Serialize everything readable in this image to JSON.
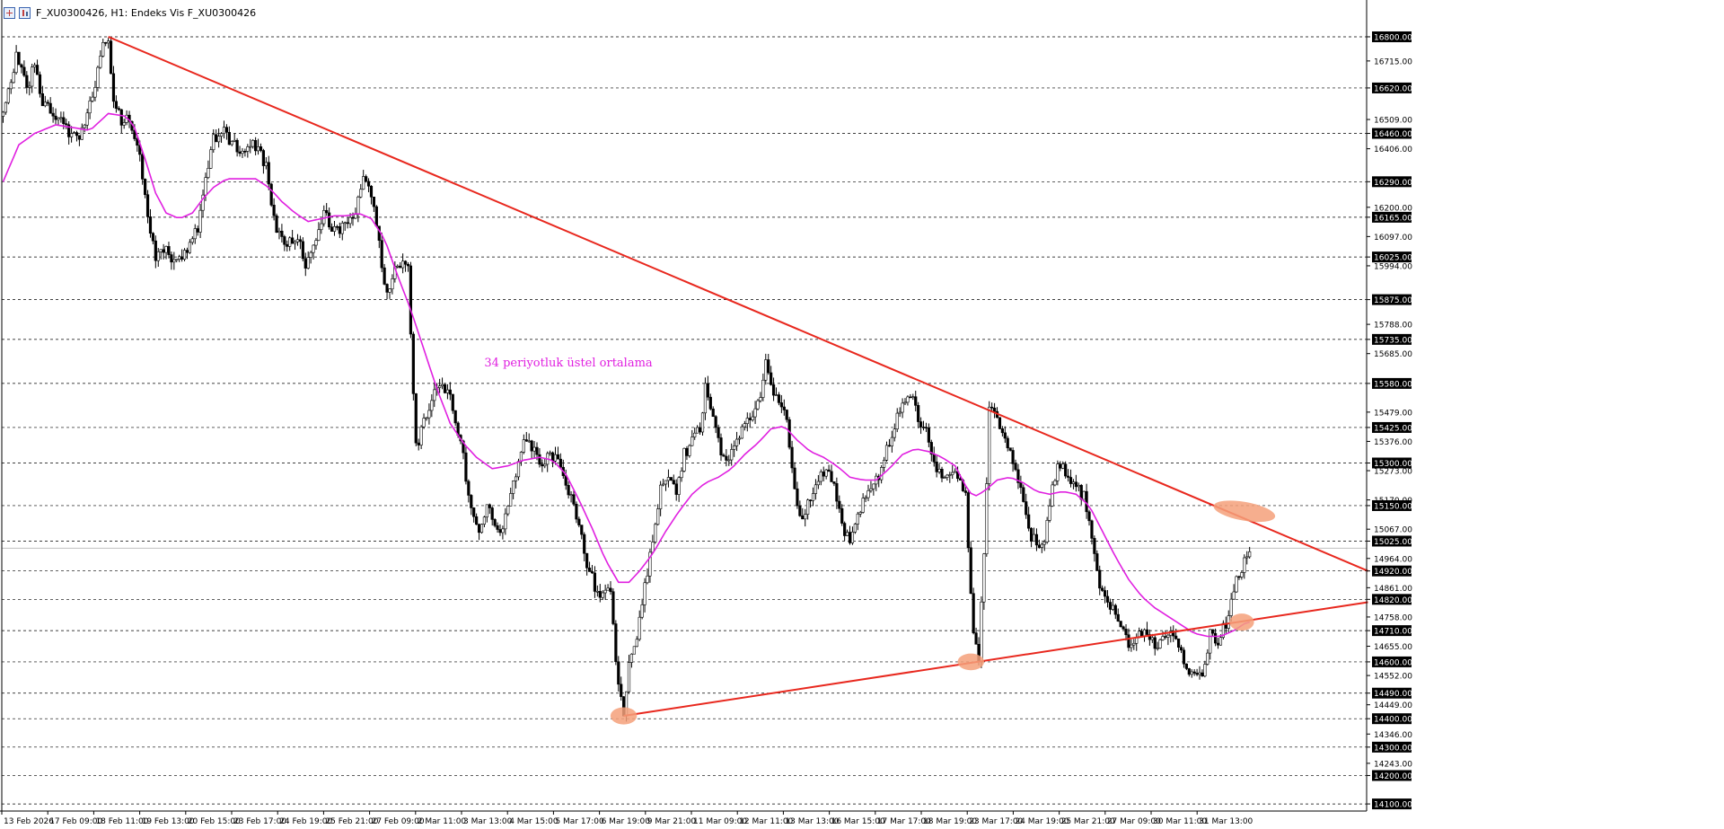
{
  "window": {
    "title": "F_XU0300426, H1:  Endeks Vis F_XU0300426"
  },
  "colors": {
    "candles": "#000000",
    "ema": "#e020e0",
    "trendline": "#e8281e",
    "highlight": "#f4a07a",
    "grid": "#000000",
    "current_price_line": "#c0c0c0"
  },
  "chart_data": {
    "type": "candlestick",
    "timeframe": "H1",
    "title": "",
    "y_range": [
      14075,
      16860
    ],
    "y_ticks": [
      "16800.00",
      "16715.00",
      "16620.00",
      "16509.00",
      "16460.00",
      "16406.00",
      "16290.00",
      "16200.00",
      "16165.00",
      "16097.00",
      "16025.00",
      "15994.00",
      "15875.00",
      "15788.00",
      "15735.00",
      "15685.00",
      "15580.00",
      "15479.00",
      "15425.00",
      "15376.00",
      "15300.00",
      "15273.00",
      "15170.00",
      "15150.00",
      "15067.00",
      "15025.00",
      "14964.00",
      "14920.00",
      "14861.00",
      "14820.00",
      "14758.00",
      "14710.00",
      "14655.00",
      "14600.00",
      "14552.00",
      "14490.00",
      "14449.00",
      "14400.00",
      "14346.00",
      "14300.00",
      "14243.00",
      "14200.00",
      "14100.00"
    ],
    "dashed_levels": [
      16800,
      16620,
      16460,
      16290,
      16165,
      16025,
      15875,
      15735,
      15580,
      15425,
      15300,
      15150,
      15025,
      14920,
      14820,
      14710,
      14600,
      14490,
      14400,
      14300,
      14200,
      14100
    ],
    "current_price": 15000,
    "x_labels": [
      "13 Feb 2026",
      "17 Feb 09:00",
      "18 Feb 11:00",
      "19 Feb 13:00",
      "20 Feb 15:00",
      "23 Feb 17:00",
      "24 Feb 19:00",
      "25 Feb 21:00",
      "27 Feb 09:00",
      "2 Mar 11:00",
      "3 Mar 13:00",
      "4 Mar 15:00",
      "5 Mar 17:00",
      "6 Mar 19:00",
      "9 Mar 21:00",
      "11 Mar 09:00",
      "12 Mar 11:00",
      "13 Mar 13:00",
      "16 Mar 15:00",
      "17 Mar 17:00",
      "18 Mar 19:00",
      "23 Mar 17:00",
      "24 Mar 19:00",
      "25 Mar 21:00",
      "27 Mar 09:00",
      "30 Mar 11:00",
      "31 Mar 13:00"
    ],
    "close_path": [
      [
        0,
        16520
      ],
      [
        5,
        16740
      ],
      [
        9,
        16620
      ],
      [
        12,
        16700
      ],
      [
        15,
        16580
      ],
      [
        20,
        16520
      ],
      [
        25,
        16470
      ],
      [
        29,
        16450
      ],
      [
        33,
        16560
      ],
      [
        38,
        16760
      ],
      [
        40,
        16800
      ],
      [
        42,
        16560
      ],
      [
        45,
        16510
      ],
      [
        48,
        16520
      ],
      [
        52,
        16380
      ],
      [
        55,
        16150
      ],
      [
        58,
        16030
      ],
      [
        62,
        16050
      ],
      [
        66,
        16000
      ],
      [
        70,
        16060
      ],
      [
        74,
        16130
      ],
      [
        77,
        16300
      ],
      [
        80,
        16440
      ],
      [
        84,
        16460
      ],
      [
        88,
        16420
      ],
      [
        92,
        16400
      ],
      [
        96,
        16420
      ],
      [
        100,
        16340
      ],
      [
        104,
        16100
      ],
      [
        108,
        16080
      ],
      [
        112,
        16100
      ],
      [
        115,
        16000
      ],
      [
        118,
        16050
      ],
      [
        122,
        16180
      ],
      [
        126,
        16110
      ],
      [
        130,
        16130
      ],
      [
        134,
        16170
      ],
      [
        137,
        16300
      ],
      [
        140,
        16240
      ],
      [
        143,
        16070
      ],
      [
        146,
        15880
      ],
      [
        149,
        16000
      ],
      [
        152,
        16000
      ],
      [
        154,
        15980
      ],
      [
        157,
        15350
      ],
      [
        160,
        15450
      ],
      [
        163,
        15530
      ],
      [
        166,
        15560
      ],
      [
        169,
        15550
      ],
      [
        172,
        15460
      ],
      [
        175,
        15320
      ],
      [
        178,
        15120
      ],
      [
        181,
        15050
      ],
      [
        184,
        15150
      ],
      [
        187,
        15080
      ],
      [
        190,
        15050
      ],
      [
        192,
        15150
      ],
      [
        195,
        15250
      ],
      [
        198,
        15370
      ],
      [
        201,
        15360
      ],
      [
        204,
        15300
      ],
      [
        207,
        15320
      ],
      [
        210,
        15330
      ],
      [
        213,
        15260
      ],
      [
        216,
        15170
      ],
      [
        219,
        15090
      ],
      [
        222,
        14950
      ],
      [
        225,
        14860
      ],
      [
        228,
        14830
      ],
      [
        231,
        14850
      ],
      [
        234,
        14500
      ],
      [
        236,
        14420
      ],
      [
        238,
        14600
      ],
      [
        241,
        14700
      ],
      [
        244,
        14870
      ],
      [
        247,
        15020
      ],
      [
        250,
        15230
      ],
      [
        253,
        15270
      ],
      [
        256,
        15200
      ],
      [
        259,
        15330
      ],
      [
        262,
        15380
      ],
      [
        265,
        15430
      ],
      [
        267,
        15560
      ],
      [
        270,
        15450
      ],
      [
        273,
        15330
      ],
      [
        276,
        15300
      ],
      [
        279,
        15390
      ],
      [
        282,
        15440
      ],
      [
        285,
        15460
      ],
      [
        288,
        15530
      ],
      [
        290,
        15660
      ],
      [
        292,
        15560
      ],
      [
        295,
        15500
      ],
      [
        298,
        15460
      ],
      [
        301,
        15200
      ],
      [
        304,
        15080
      ],
      [
        307,
        15180
      ],
      [
        310,
        15240
      ],
      [
        313,
        15260
      ],
      [
        316,
        15230
      ],
      [
        319,
        15080
      ],
      [
        322,
        15040
      ],
      [
        325,
        15120
      ],
      [
        328,
        15190
      ],
      [
        331,
        15240
      ],
      [
        334,
        15270
      ],
      [
        337,
        15380
      ],
      [
        340,
        15470
      ],
      [
        343,
        15520
      ],
      [
        346,
        15520
      ],
      [
        348,
        15440
      ],
      [
        351,
        15410
      ],
      [
        354,
        15300
      ],
      [
        357,
        15260
      ],
      [
        360,
        15280
      ],
      [
        363,
        15260
      ],
      [
        366,
        15180
      ],
      [
        369,
        14700
      ],
      [
        371,
        14620
      ],
      [
        373,
        15000
      ],
      [
        375,
        15480
      ],
      [
        378,
        15460
      ],
      [
        381,
        15400
      ],
      [
        384,
        15300
      ],
      [
        387,
        15210
      ],
      [
        390,
        15050
      ],
      [
        393,
        15030
      ],
      [
        396,
        15000
      ],
      [
        399,
        15240
      ],
      [
        402,
        15290
      ],
      [
        405,
        15260
      ],
      [
        408,
        15210
      ],
      [
        411,
        15180
      ],
      [
        414,
        15030
      ],
      [
        417,
        14880
      ],
      [
        420,
        14820
      ],
      [
        423,
        14760
      ],
      [
        426,
        14700
      ],
      [
        429,
        14660
      ],
      [
        432,
        14700
      ],
      [
        435,
        14690
      ],
      [
        438,
        14650
      ],
      [
        441,
        14680
      ],
      [
        444,
        14700
      ],
      [
        447,
        14650
      ],
      [
        450,
        14560
      ],
      [
        453,
        14550
      ],
      [
        456,
        14540
      ],
      [
        459,
        14700
      ],
      [
        462,
        14660
      ],
      [
        465,
        14740
      ],
      [
        468,
        14860
      ],
      [
        471,
        14930
      ],
      [
        474,
        14990
      ]
    ],
    "ema_path": [
      [
        0,
        16290
      ],
      [
        6,
        16420
      ],
      [
        12,
        16460
      ],
      [
        20,
        16490
      ],
      [
        27,
        16480
      ],
      [
        33,
        16470
      ],
      [
        40,
        16530
      ],
      [
        47,
        16520
      ],
      [
        50,
        16480
      ],
      [
        54,
        16370
      ],
      [
        58,
        16250
      ],
      [
        62,
        16180
      ],
      [
        67,
        16160
      ],
      [
        72,
        16180
      ],
      [
        76,
        16230
      ],
      [
        80,
        16270
      ],
      [
        85,
        16300
      ],
      [
        90,
        16300
      ],
      [
        96,
        16300
      ],
      [
        101,
        16270
      ],
      [
        106,
        16220
      ],
      [
        111,
        16180
      ],
      [
        116,
        16150
      ],
      [
        121,
        16160
      ],
      [
        126,
        16170
      ],
      [
        131,
        16170
      ],
      [
        135,
        16180
      ],
      [
        140,
        16160
      ],
      [
        145,
        16090
      ],
      [
        150,
        15960
      ],
      [
        155,
        15840
      ],
      [
        160,
        15700
      ],
      [
        165,
        15560
      ],
      [
        170,
        15440
      ],
      [
        175,
        15370
      ],
      [
        180,
        15320
      ],
      [
        186,
        15280
      ],
      [
        192,
        15290
      ],
      [
        198,
        15310
      ],
      [
        204,
        15320
      ],
      [
        209,
        15310
      ],
      [
        214,
        15260
      ],
      [
        219,
        15170
      ],
      [
        224,
        15070
      ],
      [
        229,
        14960
      ],
      [
        234,
        14880
      ],
      [
        238,
        14880
      ],
      [
        242,
        14920
      ],
      [
        247,
        14980
      ],
      [
        252,
        15060
      ],
      [
        257,
        15130
      ],
      [
        262,
        15190
      ],
      [
        267,
        15230
      ],
      [
        272,
        15250
      ],
      [
        277,
        15280
      ],
      [
        282,
        15330
      ],
      [
        287,
        15370
      ],
      [
        292,
        15420
      ],
      [
        297,
        15430
      ],
      [
        302,
        15380
      ],
      [
        307,
        15340
      ],
      [
        312,
        15320
      ],
      [
        317,
        15290
      ],
      [
        322,
        15250
      ],
      [
        327,
        15240
      ],
      [
        332,
        15240
      ],
      [
        337,
        15280
      ],
      [
        342,
        15330
      ],
      [
        347,
        15350
      ],
      [
        352,
        15340
      ],
      [
        357,
        15320
      ],
      [
        362,
        15290
      ],
      [
        366,
        15220
      ],
      [
        369,
        15180
      ],
      [
        373,
        15200
      ],
      [
        378,
        15240
      ],
      [
        383,
        15250
      ],
      [
        388,
        15230
      ],
      [
        393,
        15200
      ],
      [
        398,
        15190
      ],
      [
        403,
        15200
      ],
      [
        408,
        15190
      ],
      [
        413,
        15150
      ],
      [
        418,
        15060
      ],
      [
        423,
        14970
      ],
      [
        428,
        14890
      ],
      [
        433,
        14830
      ],
      [
        438,
        14790
      ],
      [
        443,
        14760
      ],
      [
        448,
        14730
      ],
      [
        453,
        14700
      ],
      [
        458,
        14690
      ],
      [
        463,
        14690
      ],
      [
        468,
        14710
      ],
      [
        473,
        14740
      ]
    ],
    "candle_count": 475,
    "x_visible_max": 519,
    "candle_seed": 4711,
    "trendlines": [
      {
        "from": [
          40,
          16800
        ],
        "to": [
          519,
          14920
        ]
      },
      {
        "from": [
          236,
          14410
        ],
        "to": [
          519,
          14810
        ]
      }
    ],
    "highlights": [
      {
        "at": [
          236,
          14410
        ],
        "rx": 1.4,
        "ry": 28
      },
      {
        "at": [
          368,
          14600
        ],
        "rx": 1.4,
        "ry": 26
      },
      {
        "at": [
          472,
          15130
        ],
        "rx": 3.3,
        "ry": 35,
        "rot": 10
      },
      {
        "at": [
          471,
          14740
        ],
        "rx": 1.3,
        "ry": 28
      }
    ],
    "annotations": [
      {
        "text": "34 periyotluk üstel ortalama",
        "at": [
          183,
          15640
        ],
        "color": "#e020e0"
      }
    ]
  }
}
